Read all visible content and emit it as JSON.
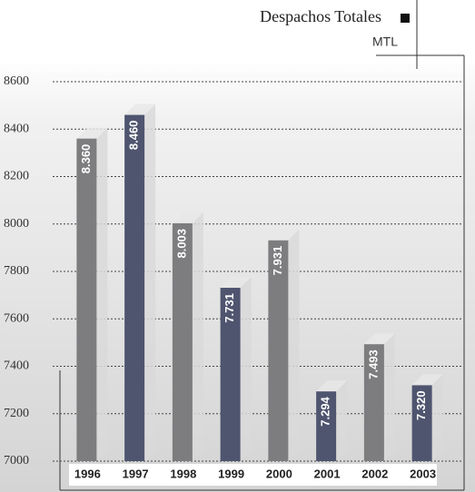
{
  "chart_data": {
    "type": "bar",
    "title": "Despachos Totales",
    "unit": "MTL",
    "categories": [
      "1996",
      "1997",
      "1998",
      "1999",
      "2000",
      "2001",
      "2002",
      "2003"
    ],
    "values": [
      8360,
      8460,
      8003,
      7731,
      7931,
      7294,
      7493,
      7320
    ],
    "value_labels": [
      "8.360",
      "8.460",
      "8.003",
      "7.731",
      "7.931",
      "7.294",
      "7.493",
      "7.320"
    ],
    "colors": [
      "#7d7d7f",
      "#4f556f",
      "#7d7d7f",
      "#4f556f",
      "#7d7d7f",
      "#4f556f",
      "#7d7d7f",
      "#4f556f"
    ],
    "legend_color": "#111111",
    "ylim": [
      7000,
      8600
    ],
    "yticks": [
      7000,
      7200,
      7400,
      7600,
      7800,
      8000,
      8200,
      8400,
      8600
    ],
    "grid": true
  }
}
